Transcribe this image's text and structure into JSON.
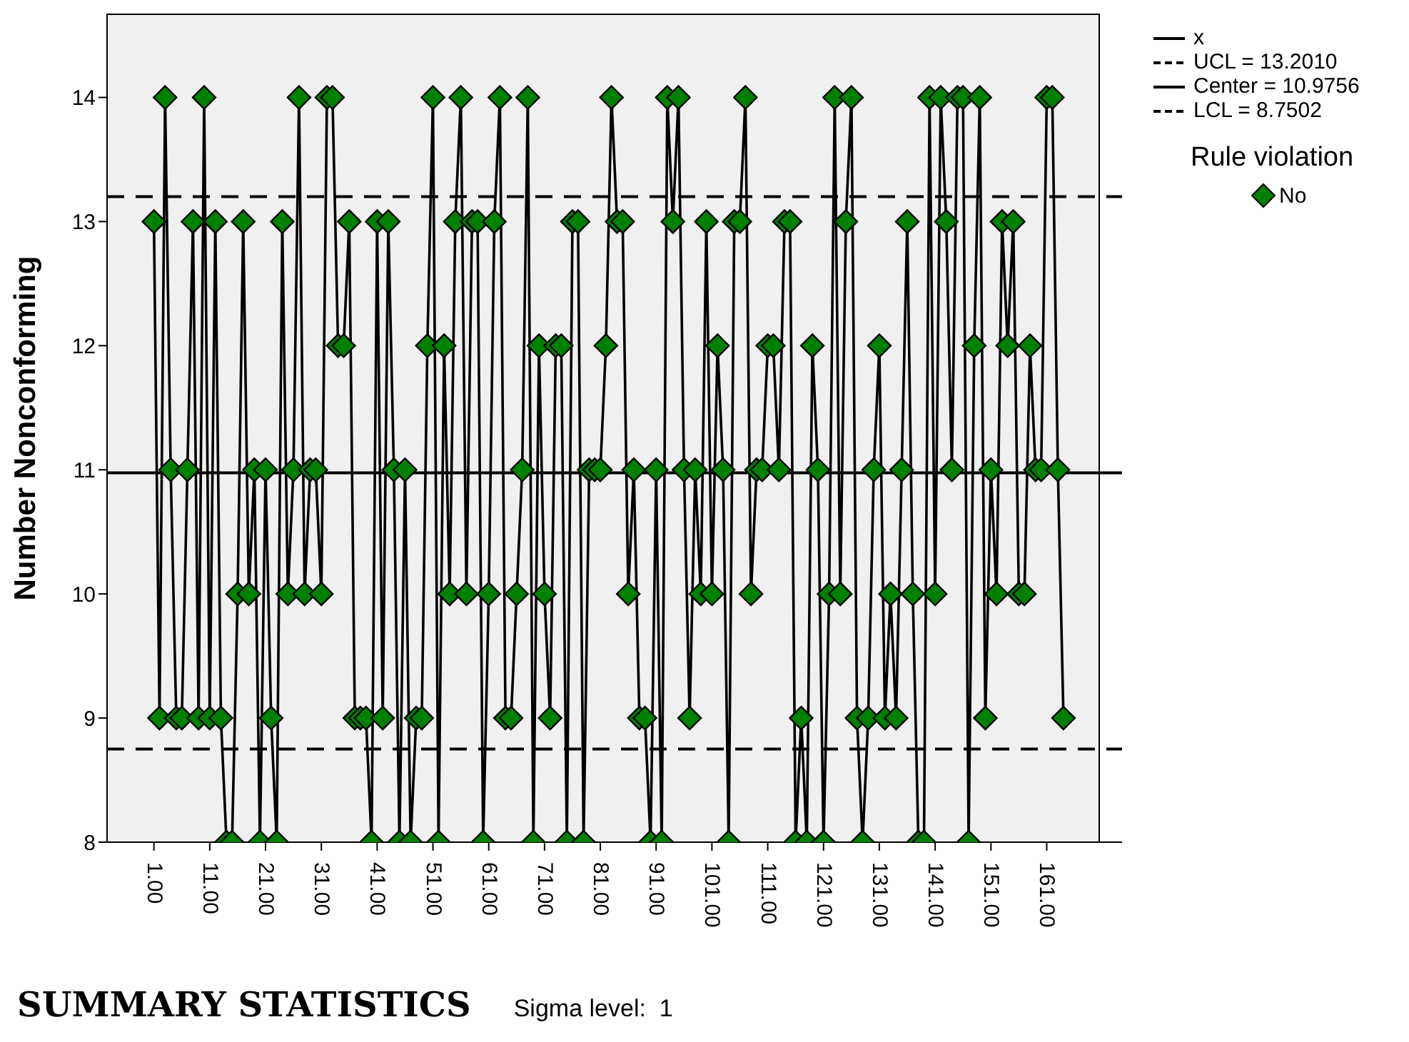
{
  "chart_data": {
    "type": "line",
    "ylabel": "Number Nonconforming",
    "legend_title": "Rule violation",
    "legend": "top right",
    "categories": [
      "1.00",
      null,
      null,
      null,
      null,
      null,
      null,
      null,
      null,
      null,
      "11.00",
      null,
      null,
      null,
      null,
      null,
      null,
      null,
      null,
      null,
      "21.00",
      null,
      null,
      null,
      null,
      null,
      null,
      null,
      null,
      null,
      "31.00",
      null,
      null,
      null,
      null,
      null,
      null,
      null,
      null,
      null,
      "41.00",
      null,
      null,
      null,
      null,
      null,
      null,
      null,
      null,
      null,
      "51.00",
      null,
      null,
      null,
      null,
      null,
      null,
      null,
      null,
      null,
      "61.00",
      null,
      null,
      null,
      null,
      null,
      null,
      null,
      null,
      null,
      "71.00",
      null,
      null,
      null,
      null,
      null,
      null,
      null,
      null,
      null,
      "81.00",
      null,
      null,
      null,
      null,
      null,
      null,
      null,
      null,
      null,
      "91.00",
      null,
      null,
      null,
      null,
      null,
      null,
      null,
      null,
      null,
      "101.00",
      null,
      null,
      null,
      null,
      null,
      null,
      null,
      null,
      null,
      "111.00",
      null,
      null,
      null,
      null,
      null,
      null,
      null,
      null,
      null,
      "121.00",
      null,
      null,
      null,
      null,
      null,
      null,
      null,
      null,
      null,
      "131.00",
      null,
      null,
      null,
      null,
      null,
      null,
      null,
      null,
      null,
      "141.00",
      null,
      null,
      null,
      null,
      null,
      null,
      null,
      null,
      null,
      "151.00",
      null,
      null,
      null,
      null,
      null,
      null,
      null,
      null,
      null,
      "161.00",
      null,
      null,
      null
    ],
    "series": [
      {
        "name": "x",
        "color": "#000000",
        "marker": "none",
        "line_style": "solid",
        "values": [
          13,
          9,
          14,
          11,
          9,
          9,
          11,
          13,
          9,
          14,
          9,
          13,
          9,
          8,
          8,
          10,
          13,
          10,
          11,
          8,
          11,
          9,
          8,
          13,
          10,
          11,
          14,
          10,
          11,
          11,
          10,
          14,
          14,
          12,
          12,
          13,
          9,
          9,
          9,
          8,
          13,
          9,
          13,
          11,
          8,
          11,
          8,
          9,
          9,
          12,
          14,
          8,
          12,
          10,
          13,
          14,
          10,
          13,
          13,
          8,
          10,
          13,
          14,
          9,
          9,
          10,
          11,
          14,
          8,
          12,
          10,
          9,
          12,
          12,
          8,
          13,
          13,
          8,
          11,
          11,
          11,
          12,
          14,
          13,
          13,
          10,
          11,
          9,
          9,
          8,
          11,
          8,
          14,
          13,
          14,
          11,
          9,
          11,
          10,
          13,
          10,
          12,
          11,
          8,
          13,
          13,
          14,
          10,
          11,
          11,
          12,
          12,
          11,
          13,
          13,
          8,
          9,
          8,
          12,
          11,
          8,
          10,
          14,
          10,
          13,
          14,
          9,
          8,
          9,
          11,
          12,
          9,
          10,
          9,
          11,
          13,
          10,
          8,
          8,
          14,
          10,
          14,
          13,
          11,
          14,
          14,
          8,
          12,
          14,
          9,
          11,
          10,
          13,
          12,
          13,
          10,
          10,
          12,
          11,
          11,
          14,
          14,
          11,
          9
        ]
      },
      {
        "name": "No",
        "type": "scatter",
        "color": "#008000",
        "marker": "diamond",
        "values": [
          13,
          9,
          14,
          11,
          9,
          9,
          11,
          13,
          9,
          14,
          9,
          13,
          9,
          8,
          8,
          10,
          13,
          10,
          11,
          8,
          11,
          9,
          8,
          13,
          10,
          11,
          14,
          10,
          11,
          11,
          10,
          14,
          14,
          12,
          12,
          13,
          9,
          9,
          9,
          8,
          13,
          9,
          13,
          11,
          8,
          11,
          8,
          9,
          9,
          12,
          14,
          8,
          12,
          10,
          13,
          14,
          10,
          13,
          13,
          8,
          10,
          13,
          14,
          9,
          9,
          10,
          11,
          14,
          8,
          12,
          10,
          9,
          12,
          12,
          8,
          13,
          13,
          8,
          11,
          11,
          11,
          12,
          14,
          13,
          13,
          10,
          11,
          9,
          9,
          8,
          11,
          8,
          14,
          13,
          14,
          11,
          9,
          11,
          10,
          13,
          10,
          12,
          11,
          8,
          13,
          13,
          14,
          10,
          11,
          11,
          12,
          12,
          11,
          13,
          13,
          8,
          9,
          8,
          12,
          11,
          8,
          10,
          14,
          10,
          13,
          14,
          9,
          8,
          9,
          11,
          12,
          9,
          10,
          9,
          11,
          13,
          10,
          8,
          8,
          14,
          10,
          14,
          13,
          11,
          14,
          14,
          8,
          12,
          14,
          9,
          11,
          10,
          13,
          12,
          13,
          10,
          10,
          12,
          11,
          11,
          14,
          14,
          11,
          9
        ]
      }
    ],
    "ref_lines": [
      {
        "axis": "y",
        "value": 13.201,
        "label": "UCL = 13.2010",
        "color": "#000000",
        "line_style": "dashed"
      },
      {
        "axis": "y",
        "value": 10.9756,
        "label": "Center = 10.9756",
        "color": "#000000",
        "line_style": "solid"
      },
      {
        "axis": "y",
        "value": 8.7502,
        "label": "LCL = 8.7502",
        "color": "#000000",
        "line_style": "dashed"
      }
    ],
    "ylim": [
      8,
      14.67
    ],
    "yticks": [
      8,
      9,
      10,
      11,
      12,
      13,
      14
    ],
    "annotations": [
      "SUMMARY STATISTICS",
      "Sigma level:  1"
    ]
  }
}
